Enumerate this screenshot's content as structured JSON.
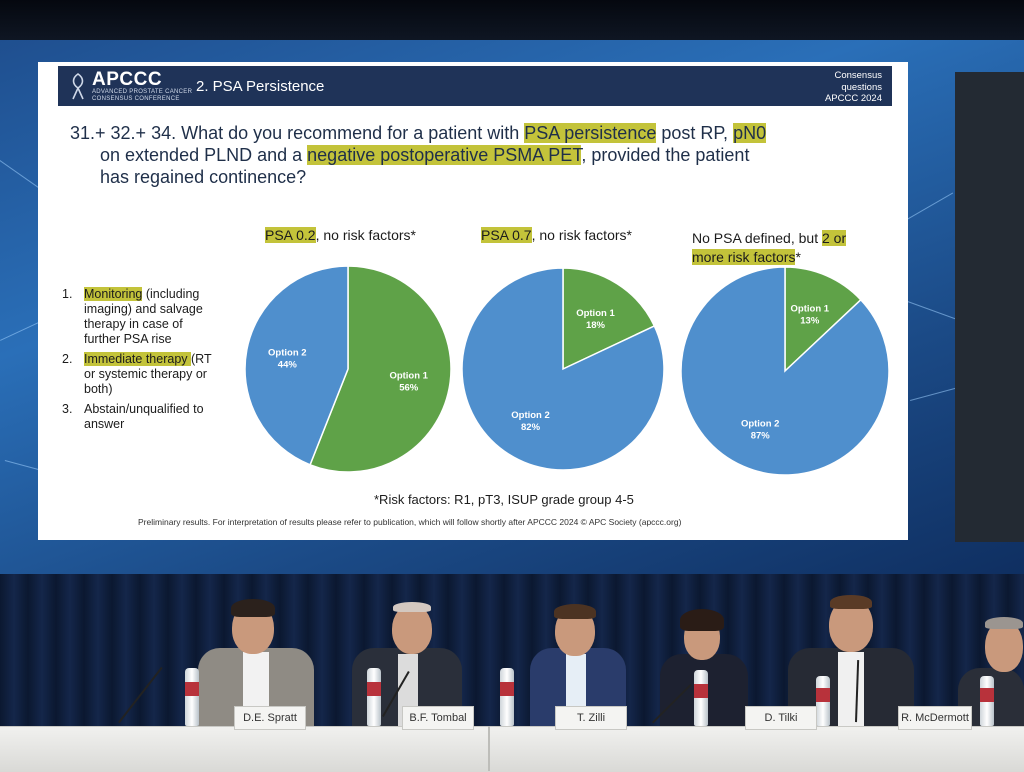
{
  "header": {
    "logo": "APCCC",
    "logo_sub_1": "ADVANCED PROSTATE CANCER",
    "logo_sub_2": "CONSENSUS CONFERENCE",
    "section": "2. PSA Persistence",
    "consensus_line_1": "Consensus",
    "consensus_line_2": "questions",
    "consensus_line_3": "APCCC 2024"
  },
  "question": {
    "p1": "31.+ 32.+ 34. What do you recommend for a patient with ",
    "h1": "PSA persistence",
    "p2": " post RP, ",
    "h2": "pN0",
    "p3": "on extended PLND and a ",
    "h3": "negative postoperative PSMA PET",
    "p4": ", provided the patient",
    "p5": "has regained continence?"
  },
  "options": [
    {
      "num": "1.",
      "hl": "Monitoring",
      "text_1": " (including",
      "text_2": "imaging) and salvage",
      "text_3": "therapy in case of",
      "text_4": "further PSA rise"
    },
    {
      "num": "2.",
      "hl": "Immediate therapy ",
      "text_1": "(RT",
      "text_2": "or systemic therapy or",
      "text_3": "both)"
    },
    {
      "num": "3.",
      "text_1": "Abstain/unqualified to",
      "text_2": "answer"
    }
  ],
  "pie_titles": [
    {
      "hl": "PSA 0.2",
      "text": ", no risk factors*"
    },
    {
      "hl": "PSA 0.7",
      "text": ", no risk factors*"
    },
    {
      "text": "No PSA defined, but ",
      "hl": "2 or",
      "hl2": "more risk factors",
      "text2": "*"
    }
  ],
  "footnote": "*Risk factors: R1, pT3, ISUP grade group 4-5",
  "prelim": "Preliminary results. For interpretation of results please refer to publication, which will follow shortly after APCCC 2024 © APC Society (apccc.org)",
  "colors": {
    "option1": "#5fa248",
    "option2": "#4f8fcd",
    "highlight": "#c3c33a",
    "header_bg": "#1f3358"
  },
  "panelists": [
    "D.E. Spratt",
    "B.F. Tombal",
    "T. Zilli",
    "D. Tilki",
    "R. McDermott"
  ],
  "chart_data": [
    {
      "type": "pie",
      "title": "PSA 0.2, no risk factors*",
      "labels": [
        "Option 1",
        "Option 2"
      ],
      "values": [
        56,
        44
      ]
    },
    {
      "type": "pie",
      "title": "PSA 0.7, no risk factors*",
      "labels": [
        "Option 1",
        "Option 2"
      ],
      "values": [
        18,
        82
      ]
    },
    {
      "type": "pie",
      "title": "No PSA defined, but 2 or more risk factors*",
      "labels": [
        "Option 1",
        "Option 2"
      ],
      "values": [
        13,
        87
      ]
    }
  ]
}
